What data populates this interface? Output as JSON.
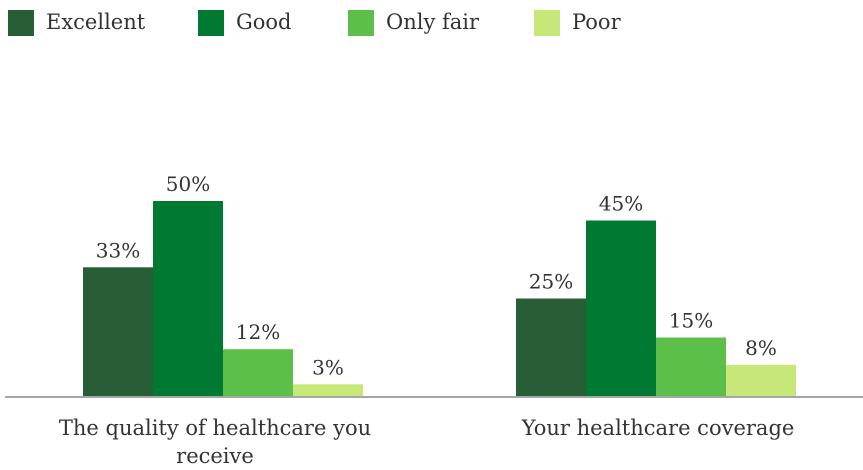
{
  "chart_data": {
    "type": "bar",
    "title": "",
    "xlabel": "",
    "ylabel": "",
    "ylim": [
      0,
      55
    ],
    "grid": false,
    "legend_position": "top",
    "value_suffix": "%",
    "categories": [
      [
        "The quality of healthcare you",
        "receive"
      ],
      [
        "Your healthcare coverage"
      ]
    ],
    "series": [
      {
        "name": "Excellent",
        "color": "#285e36",
        "values": [
          33,
          25
        ]
      },
      {
        "name": "Good",
        "color": "#007a33",
        "values": [
          50,
          45
        ]
      },
      {
        "name": "Only fair",
        "color": "#5cbf4a",
        "values": [
          12,
          15
        ]
      },
      {
        "name": "Poor",
        "color": "#c7e879",
        "values": [
          3,
          8
        ]
      }
    ]
  }
}
